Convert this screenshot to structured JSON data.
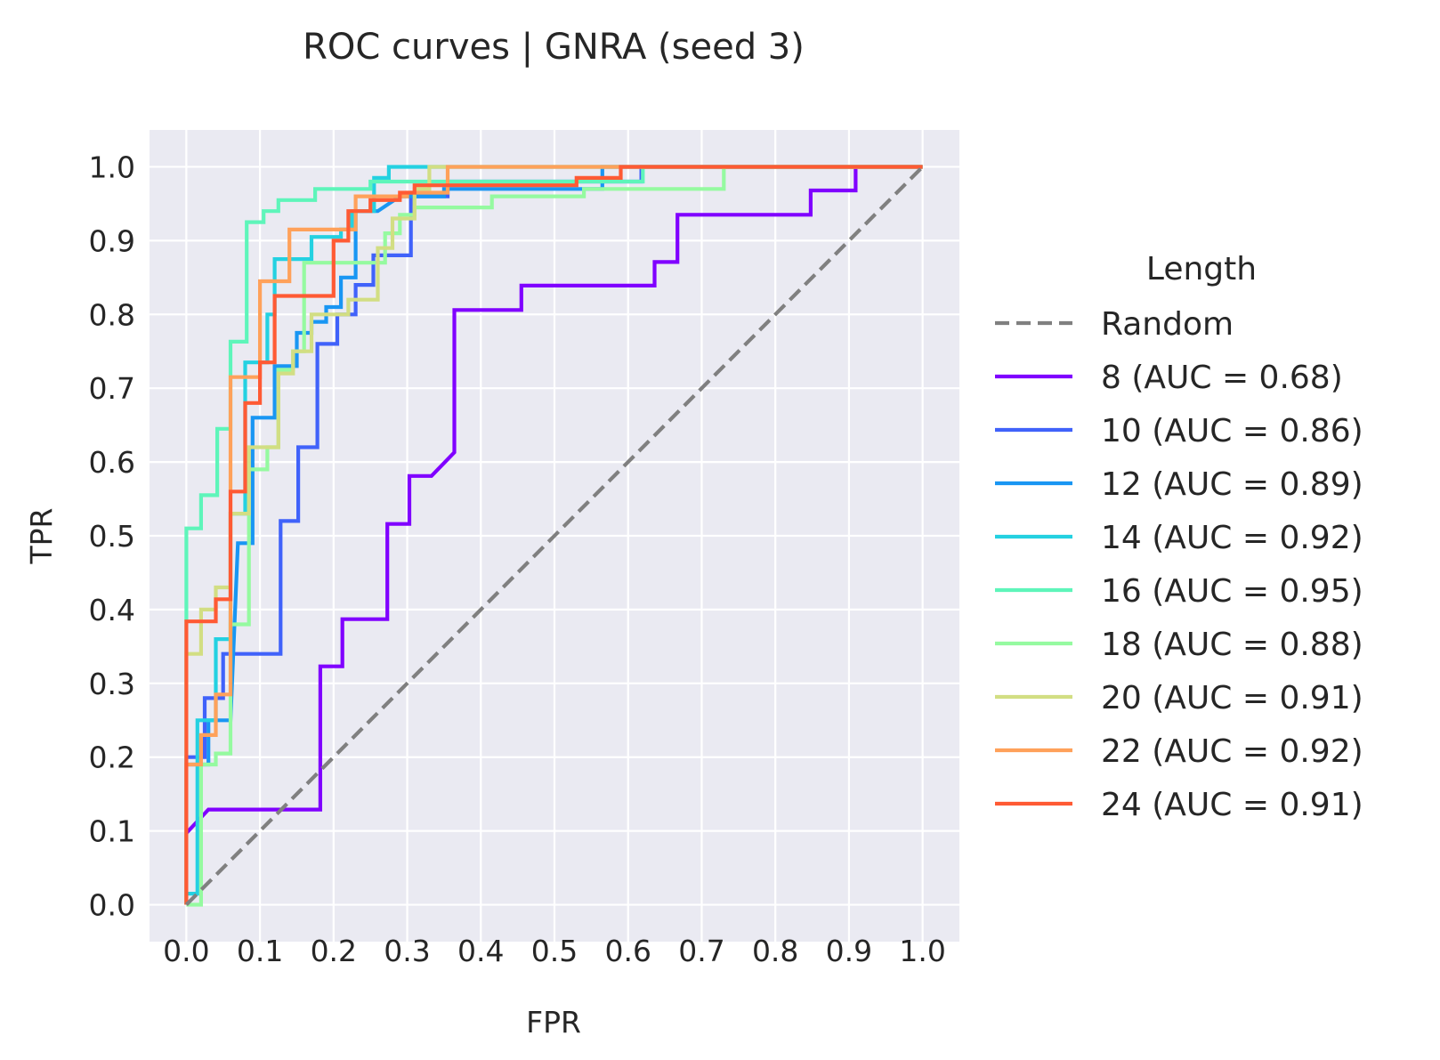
{
  "chart_data": {
    "type": "line",
    "title": "ROC curves | GNRA (seed 3)",
    "xlabel": "FPR",
    "ylabel": "TPR",
    "xlim": [
      -0.05,
      1.05
    ],
    "ylim": [
      -0.05,
      1.05
    ],
    "xticks": [
      "0.0",
      "0.1",
      "0.2",
      "0.3",
      "0.4",
      "0.5",
      "0.6",
      "0.7",
      "0.8",
      "0.9",
      "1.0"
    ],
    "yticks": [
      "0.0",
      "0.1",
      "0.2",
      "0.3",
      "0.4",
      "0.5",
      "0.6",
      "0.7",
      "0.8",
      "0.9",
      "1.0"
    ],
    "grid": true,
    "legend": {
      "title": "Length",
      "placement": "outside-right"
    },
    "background": "#eaeaf2",
    "series": [
      {
        "name": "Random",
        "color": "#808080",
        "dashed": true,
        "points": [
          [
            0,
            0
          ],
          [
            1,
            1
          ]
        ]
      },
      {
        "name": "8 (AUC = 0.68)",
        "color": "#8000ff",
        "points": [
          [
            0,
            0
          ],
          [
            0,
            0.097
          ],
          [
            0.03,
            0.129
          ],
          [
            0.182,
            0.129
          ],
          [
            0.182,
            0.323
          ],
          [
            0.212,
            0.323
          ],
          [
            0.212,
            0.387
          ],
          [
            0.273,
            0.387
          ],
          [
            0.273,
            0.516
          ],
          [
            0.303,
            0.516
          ],
          [
            0.303,
            0.581
          ],
          [
            0.333,
            0.581
          ],
          [
            0.364,
            0.613
          ],
          [
            0.364,
            0.806
          ],
          [
            0.455,
            0.806
          ],
          [
            0.455,
            0.839
          ],
          [
            0.636,
            0.839
          ],
          [
            0.636,
            0.871
          ],
          [
            0.667,
            0.871
          ],
          [
            0.667,
            0.935
          ],
          [
            0.848,
            0.935
          ],
          [
            0.848,
            0.968
          ],
          [
            0.909,
            0.968
          ],
          [
            0.909,
            1.0
          ],
          [
            1.0,
            1.0
          ]
        ]
      },
      {
        "name": "10 (AUC = 0.86)",
        "color": "#4062fa",
        "points": [
          [
            0,
            0
          ],
          [
            0,
            0.2
          ],
          [
            0.025,
            0.2
          ],
          [
            0.025,
            0.28
          ],
          [
            0.05,
            0.28
          ],
          [
            0.05,
            0.34
          ],
          [
            0.128,
            0.34
          ],
          [
            0.128,
            0.52
          ],
          [
            0.152,
            0.52
          ],
          [
            0.152,
            0.62
          ],
          [
            0.178,
            0.62
          ],
          [
            0.178,
            0.76
          ],
          [
            0.205,
            0.76
          ],
          [
            0.205,
            0.8
          ],
          [
            0.23,
            0.8
          ],
          [
            0.23,
            0.84
          ],
          [
            0.254,
            0.84
          ],
          [
            0.254,
            0.88
          ],
          [
            0.305,
            0.88
          ],
          [
            0.305,
            0.96
          ],
          [
            0.355,
            0.96
          ],
          [
            0.355,
            0.98
          ],
          [
            0.618,
            0.98
          ],
          [
            0.618,
            1.0
          ],
          [
            1.0,
            1.0
          ]
        ]
      },
      {
        "name": "12 (AUC = 0.89)",
        "color": "#1996f3",
        "points": [
          [
            0,
            0
          ],
          [
            0,
            0.19
          ],
          [
            0.03,
            0.19
          ],
          [
            0.03,
            0.25
          ],
          [
            0.06,
            0.25
          ],
          [
            0.07,
            0.49
          ],
          [
            0.09,
            0.49
          ],
          [
            0.09,
            0.66
          ],
          [
            0.12,
            0.66
          ],
          [
            0.12,
            0.73
          ],
          [
            0.15,
            0.73
          ],
          [
            0.15,
            0.775
          ],
          [
            0.17,
            0.775
          ],
          [
            0.17,
            0.79
          ],
          [
            0.19,
            0.79
          ],
          [
            0.19,
            0.81
          ],
          [
            0.21,
            0.81
          ],
          [
            0.21,
            0.85
          ],
          [
            0.23,
            0.85
          ],
          [
            0.23,
            0.94
          ],
          [
            0.26,
            0.94
          ],
          [
            0.29,
            0.96
          ],
          [
            0.35,
            0.96
          ],
          [
            0.35,
            0.97
          ],
          [
            0.565,
            0.97
          ],
          [
            0.565,
            1.0
          ],
          [
            1.0,
            1.0
          ]
        ]
      },
      {
        "name": "14 (AUC = 0.92)",
        "color": "#24d1e1",
        "points": [
          [
            0,
            0
          ],
          [
            0,
            0.015
          ],
          [
            0.015,
            0.015
          ],
          [
            0.015,
            0.25
          ],
          [
            0.04,
            0.25
          ],
          [
            0.04,
            0.36
          ],
          [
            0.06,
            0.36
          ],
          [
            0.06,
            0.53
          ],
          [
            0.08,
            0.53
          ],
          [
            0.08,
            0.67
          ],
          [
            0.08,
            0.735
          ],
          [
            0.11,
            0.735
          ],
          [
            0.11,
            0.8
          ],
          [
            0.12,
            0.8
          ],
          [
            0.12,
            0.875
          ],
          [
            0.17,
            0.875
          ],
          [
            0.17,
            0.905
          ],
          [
            0.21,
            0.905
          ],
          [
            0.21,
            0.915
          ],
          [
            0.225,
            0.915
          ],
          [
            0.225,
            0.94
          ],
          [
            0.255,
            0.94
          ],
          [
            0.255,
            0.985
          ],
          [
            0.275,
            0.985
          ],
          [
            0.275,
            1.0
          ],
          [
            0.55,
            1.0
          ],
          [
            0.62,
            1.0
          ],
          [
            1.0,
            1.0
          ]
        ]
      },
      {
        "name": "16 (AUC = 0.95)",
        "color": "#5ef5ba",
        "points": [
          [
            0,
            0
          ],
          [
            0,
            0.51
          ],
          [
            0.02,
            0.51
          ],
          [
            0.02,
            0.555
          ],
          [
            0.042,
            0.555
          ],
          [
            0.042,
            0.645
          ],
          [
            0.06,
            0.645
          ],
          [
            0.06,
            0.763
          ],
          [
            0.082,
            0.763
          ],
          [
            0.082,
            0.925
          ],
          [
            0.105,
            0.925
          ],
          [
            0.105,
            0.94
          ],
          [
            0.125,
            0.94
          ],
          [
            0.125,
            0.955
          ],
          [
            0.175,
            0.955
          ],
          [
            0.175,
            0.97
          ],
          [
            0.25,
            0.97
          ],
          [
            0.25,
            0.98
          ],
          [
            0.62,
            0.98
          ],
          [
            0.62,
            1.0
          ],
          [
            1.0,
            1.0
          ]
        ]
      },
      {
        "name": "18 (AUC = 0.88)",
        "color": "#95faa0",
        "points": [
          [
            0,
            0
          ],
          [
            0.02,
            0
          ],
          [
            0.02,
            0.19
          ],
          [
            0.04,
            0.19
          ],
          [
            0.04,
            0.205
          ],
          [
            0.06,
            0.205
          ],
          [
            0.06,
            0.38
          ],
          [
            0.085,
            0.38
          ],
          [
            0.085,
            0.59
          ],
          [
            0.11,
            0.59
          ],
          [
            0.11,
            0.62
          ],
          [
            0.125,
            0.62
          ],
          [
            0.125,
            0.725
          ],
          [
            0.145,
            0.725
          ],
          [
            0.145,
            0.75
          ],
          [
            0.16,
            0.75
          ],
          [
            0.16,
            0.87
          ],
          [
            0.21,
            0.87
          ],
          [
            0.21,
            0.87
          ],
          [
            0.27,
            0.87
          ],
          [
            0.27,
            0.91
          ],
          [
            0.29,
            0.91
          ],
          [
            0.29,
            0.935
          ],
          [
            0.31,
            0.935
          ],
          [
            0.31,
            0.945
          ],
          [
            0.415,
            0.945
          ],
          [
            0.415,
            0.96
          ],
          [
            0.54,
            0.96
          ],
          [
            0.54,
            0.97
          ],
          [
            0.73,
            0.97
          ],
          [
            0.73,
            1.0
          ],
          [
            1.0,
            1.0
          ]
        ]
      },
      {
        "name": "20 (AUC = 0.91)",
        "color": "#d2de83",
        "points": [
          [
            0,
            0
          ],
          [
            0,
            0.34
          ],
          [
            0.02,
            0.34
          ],
          [
            0.02,
            0.4
          ],
          [
            0.04,
            0.4
          ],
          [
            0.04,
            0.43
          ],
          [
            0.06,
            0.43
          ],
          [
            0.06,
            0.53
          ],
          [
            0.085,
            0.53
          ],
          [
            0.085,
            0.62
          ],
          [
            0.125,
            0.62
          ],
          [
            0.125,
            0.72
          ],
          [
            0.145,
            0.72
          ],
          [
            0.145,
            0.75
          ],
          [
            0.17,
            0.75
          ],
          [
            0.17,
            0.8
          ],
          [
            0.22,
            0.8
          ],
          [
            0.22,
            0.82
          ],
          [
            0.26,
            0.82
          ],
          [
            0.26,
            0.89
          ],
          [
            0.28,
            0.89
          ],
          [
            0.28,
            0.93
          ],
          [
            0.31,
            0.93
          ],
          [
            0.31,
            0.97
          ],
          [
            0.33,
            0.97
          ],
          [
            0.33,
            1.0
          ],
          [
            1.0,
            1.0
          ]
        ]
      },
      {
        "name": "22 (AUC = 0.92)",
        "color": "#ffa15a",
        "points": [
          [
            0,
            0
          ],
          [
            0,
            0.19
          ],
          [
            0.02,
            0.19
          ],
          [
            0.02,
            0.23
          ],
          [
            0.04,
            0.23
          ],
          [
            0.04,
            0.285
          ],
          [
            0.06,
            0.285
          ],
          [
            0.06,
            0.715
          ],
          [
            0.1,
            0.715
          ],
          [
            0.1,
            0.845
          ],
          [
            0.14,
            0.845
          ],
          [
            0.14,
            0.915
          ],
          [
            0.2,
            0.915
          ],
          [
            0.2,
            0.915
          ],
          [
            0.23,
            0.915
          ],
          [
            0.23,
            0.96
          ],
          [
            0.3,
            0.96
          ],
          [
            0.3,
            0.965
          ],
          [
            0.355,
            0.965
          ],
          [
            0.355,
            1.0
          ],
          [
            1.0,
            1.0
          ]
        ]
      },
      {
        "name": "24 (AUC = 0.91)",
        "color": "#ff5a34",
        "points": [
          [
            0,
            0
          ],
          [
            0,
            0.384
          ],
          [
            0.04,
            0.384
          ],
          [
            0.04,
            0.414
          ],
          [
            0.06,
            0.414
          ],
          [
            0.06,
            0.56
          ],
          [
            0.08,
            0.56
          ],
          [
            0.08,
            0.68
          ],
          [
            0.1,
            0.68
          ],
          [
            0.1,
            0.735
          ],
          [
            0.12,
            0.735
          ],
          [
            0.12,
            0.825
          ],
          [
            0.2,
            0.825
          ],
          [
            0.2,
            0.9
          ],
          [
            0.22,
            0.9
          ],
          [
            0.22,
            0.94
          ],
          [
            0.25,
            0.94
          ],
          [
            0.25,
            0.955
          ],
          [
            0.29,
            0.955
          ],
          [
            0.29,
            0.965
          ],
          [
            0.31,
            0.965
          ],
          [
            0.31,
            0.975
          ],
          [
            0.53,
            0.975
          ],
          [
            0.53,
            0.985
          ],
          [
            0.59,
            0.985
          ],
          [
            0.59,
            1.0
          ],
          [
            1.0,
            1.0
          ]
        ]
      }
    ]
  }
}
